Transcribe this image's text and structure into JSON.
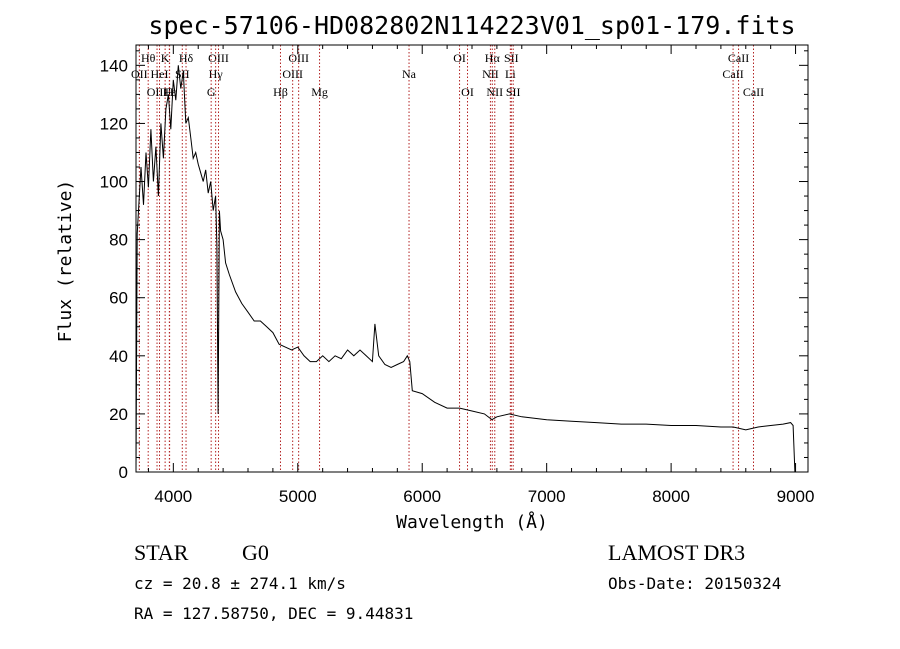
{
  "chart_data": {
    "type": "line",
    "title": "spec-57106-HD082802N114223V01_sp01-179.fits",
    "xlabel": "Wavelength (Å)",
    "ylabel": "Flux (relative)",
    "xlim": [
      3700,
      9100
    ],
    "ylim": [
      0,
      147
    ],
    "xticks": [
      4000,
      5000,
      6000,
      7000,
      8000,
      9000
    ],
    "yticks": [
      0,
      20,
      40,
      60,
      80,
      100,
      120,
      140
    ],
    "grid": false,
    "series": [
      {
        "x": [
          3700,
          3710,
          3720,
          3740,
          3760,
          3780,
          3800,
          3820,
          3840,
          3860,
          3880,
          3900,
          3920,
          3940,
          3960,
          3980,
          4000,
          4020,
          4040,
          4060,
          4080,
          4100,
          4120,
          4140,
          4160,
          4180,
          4200,
          4220,
          4240,
          4260,
          4280,
          4300,
          4320,
          4340,
          4350,
          4360,
          4370,
          4380,
          4400,
          4420,
          4450,
          4500,
          4550,
          4600,
          4650,
          4700,
          4750,
          4800,
          4850,
          4900,
          4950,
          5000,
          5050,
          5100,
          5150,
          5200,
          5250,
          5300,
          5350,
          5400,
          5450,
          5500,
          5550,
          5600,
          5620,
          5650,
          5700,
          5750,
          5800,
          5850,
          5880,
          5900,
          5920,
          6000,
          6100,
          6200,
          6300,
          6400,
          6500,
          6560,
          6600,
          6700,
          6800,
          7000,
          7200,
          7400,
          7600,
          7800,
          8000,
          8200,
          8400,
          8500,
          8600,
          8700,
          8800,
          8900,
          8960,
          8980,
          8995
        ],
        "y": [
          0,
          82,
          90,
          105,
          92,
          110,
          98,
          118,
          100,
          112,
          95,
          120,
          108,
          125,
          130,
          118,
          135,
          128,
          140,
          132,
          138,
          120,
          122,
          115,
          108,
          110,
          106,
          103,
          100,
          104,
          96,
          100,
          90,
          95,
          78,
          20,
          90,
          83,
          80,
          72,
          68,
          62,
          58,
          55,
          52,
          52,
          50,
          48,
          44,
          43,
          42,
          43,
          40,
          38,
          38,
          40,
          38,
          40,
          39,
          42,
          40,
          42,
          40,
          38,
          51,
          40,
          37,
          36,
          37,
          38,
          40,
          38,
          28,
          27,
          24,
          22,
          22,
          21,
          20,
          18,
          19,
          20,
          19,
          18,
          17.5,
          17,
          16.5,
          16.5,
          16,
          16,
          15.5,
          15.5,
          14.5,
          15.5,
          16,
          16.5,
          17,
          16,
          0
        ]
      }
    ],
    "line_markers": [
      {
        "label": "Hθ",
        "x": 3798,
        "row": 1
      },
      {
        "label": "OII",
        "x": 3727,
        "row": 2
      },
      {
        "label": "OIII",
        "x": 3869,
        "row": 3
      },
      {
        "label": "K",
        "x": 3934,
        "row": 1
      },
      {
        "label": "HeI",
        "x": 3889,
        "row": 2
      },
      {
        "label": "Hε",
        "x": 3970,
        "row": 3
      },
      {
        "label": "H",
        "x": 3968,
        "row": 3
      },
      {
        "label": "Hδ",
        "x": 4102,
        "row": 1
      },
      {
        "label": "SII",
        "x": 4072,
        "row": 2
      },
      {
        "label": "OIII",
        "x": 4363,
        "row": 1
      },
      {
        "label": "Hγ",
        "x": 4340,
        "row": 2
      },
      {
        "label": "G",
        "x": 4304,
        "row": 3
      },
      {
        "label": "OIII",
        "x": 5007,
        "row": 1
      },
      {
        "label": "OIII",
        "x": 4959,
        "row": 2
      },
      {
        "label": "Hβ",
        "x": 4861,
        "row": 3
      },
      {
        "label": "Mg",
        "x": 5175,
        "row": 3
      },
      {
        "label": "Na",
        "x": 5894,
        "row": 2
      },
      {
        "label": "OI",
        "x": 6300,
        "row": 1
      },
      {
        "label": "OI",
        "x": 6364,
        "row": 3
      },
      {
        "label": "Hα",
        "x": 6563,
        "row": 1
      },
      {
        "label": "NII",
        "x": 6548,
        "row": 2
      },
      {
        "label": "NII",
        "x": 6583,
        "row": 3
      },
      {
        "label": "SII",
        "x": 6716,
        "row": 1
      },
      {
        "label": "Li",
        "x": 6708,
        "row": 2
      },
      {
        "label": "SII",
        "x": 6731,
        "row": 3
      },
      {
        "label": "CaII",
        "x": 8542,
        "row": 1
      },
      {
        "label": "CaII",
        "x": 8498,
        "row": 2
      },
      {
        "label": "CaII",
        "x": 8662,
        "row": 3
      }
    ]
  },
  "info": {
    "object_type": "STAR",
    "spectral_class": "G0",
    "survey": "LAMOST DR3",
    "cz_line": "cz = 20.8 ± 274.1 km/s",
    "obs_date": "Obs-Date: 20150324",
    "radec_line": "RA = 127.58750, DEC =   9.44831"
  },
  "colors": {
    "spectrum": "#000000",
    "marker_lines": "#b22222"
  }
}
